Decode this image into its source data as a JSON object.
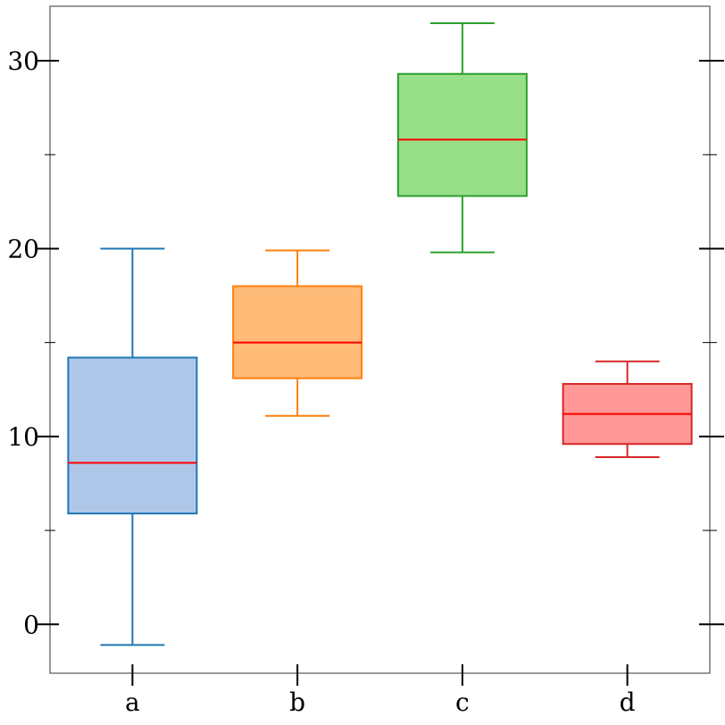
{
  "chart_data": {
    "type": "box",
    "title": "",
    "xlabel": "",
    "ylabel": "",
    "categories": [
      "a",
      "b",
      "c",
      "d"
    ],
    "ylim": [
      -2.6,
      32.9
    ],
    "y_ticks_major": [
      0,
      10,
      20,
      30
    ],
    "y_tick_labels": [
      "0",
      "10",
      "20",
      "30"
    ],
    "y_ticks_minor": [
      5,
      15,
      25
    ],
    "grid": false,
    "legend": "none",
    "boxes": [
      {
        "category": "a",
        "whisker_low": -1.1,
        "q1": 5.9,
        "median": 8.6,
        "q3": 14.2,
        "whisker_high": 20.0,
        "edge_color": "#1f77b4",
        "fill_color": "#aec7e8"
      },
      {
        "category": "b",
        "whisker_low": 11.1,
        "q1": 13.1,
        "median": 15.0,
        "q3": 18.0,
        "whisker_high": 19.9,
        "edge_color": "#ff7f0e",
        "fill_color": "#ffbb78"
      },
      {
        "category": "c",
        "whisker_low": 19.8,
        "q1": 22.8,
        "median": 25.8,
        "q3": 29.3,
        "whisker_high": 32.0,
        "edge_color": "#2ca02c",
        "fill_color": "#98df8a"
      },
      {
        "category": "d",
        "whisker_low": 8.9,
        "q1": 9.6,
        "median": 11.2,
        "q3": 12.8,
        "whisker_high": 14.0,
        "edge_color": "#d62728",
        "fill_color": "#ff9896"
      }
    ],
    "median_color": "#ff0000",
    "axis_color": "#555555"
  }
}
